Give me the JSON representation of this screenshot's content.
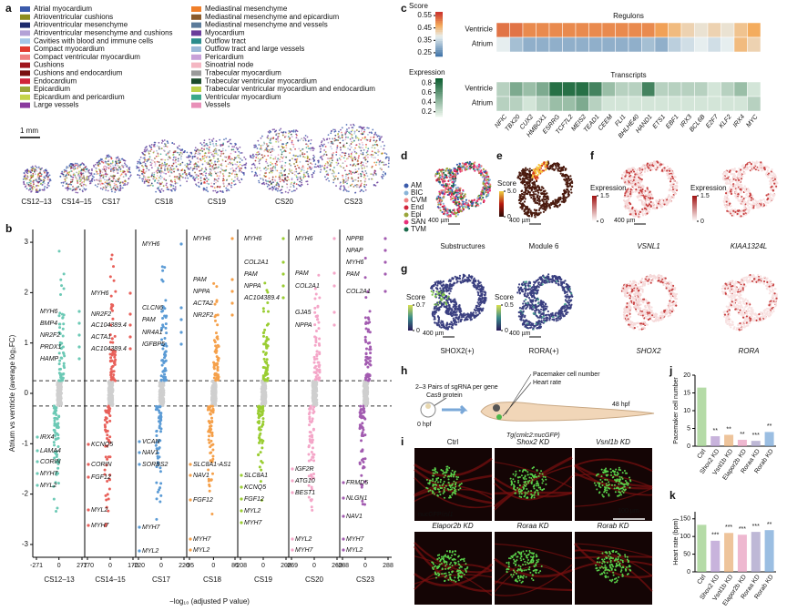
{
  "panel_labels": [
    "a",
    "b",
    "c",
    "d",
    "e",
    "f",
    "g",
    "h",
    "i",
    "j",
    "k"
  ],
  "a": {
    "legend": [
      {
        "name": "Atrial myocardium",
        "color": "#3b5bab"
      },
      {
        "name": "Atrioventricular cushions",
        "color": "#8c8c1e"
      },
      {
        "name": "Atrioventricular mesenchyme",
        "color": "#1c2a6b"
      },
      {
        "name": "Atrioventricular mesenchyme and cushions",
        "color": "#b3a1d6"
      },
      {
        "name": "Cavities with blood and immune cells",
        "color": "#a6c8e8"
      },
      {
        "name": "Compact myocardium",
        "color": "#e03c31"
      },
      {
        "name": "Compact ventricular myocardium",
        "color": "#f08080"
      },
      {
        "name": "Cushions",
        "color": "#a0151c"
      },
      {
        "name": "Cushions and endocardium",
        "color": "#7a1010"
      },
      {
        "name": "Endocardium",
        "color": "#d0243a"
      },
      {
        "name": "Epicardium",
        "color": "#9aa53a"
      },
      {
        "name": "Epicardium and pericardium",
        "color": "#c5d44a"
      },
      {
        "name": "Large vessels",
        "color": "#8a3a9e"
      },
      {
        "name": "Mediastinal mesenchyme",
        "color": "#f07f2a"
      },
      {
        "name": "Mediastinal mesenchyme and epicardium",
        "color": "#8a5a2b"
      },
      {
        "name": "Mediastinal mesenchyme and vessels",
        "color": "#5a7a9a"
      },
      {
        "name": "Myocardium",
        "color": "#6a3d9a"
      },
      {
        "name": "Outflow tract",
        "color": "#2a8c8c"
      },
      {
        "name": "Outflow tract and large vessels",
        "color": "#9ab8d8"
      },
      {
        "name": "Pericardium",
        "color": "#c8a0d8"
      },
      {
        "name": "Sinoatrial node",
        "color": "#f4b6c2"
      },
      {
        "name": "Trabecular myocardium",
        "color": "#9a9a9a"
      },
      {
        "name": "Trabecular ventricular myocardium",
        "color": "#1a4a2a"
      },
      {
        "name": "Trabecular ventricular myocardium and endocardium",
        "color": "#bcd24a"
      },
      {
        "name": "Ventricular myocardium",
        "color": "#3aa88a"
      },
      {
        "name": "Vessels",
        "color": "#e890b8"
      }
    ],
    "scale_bar": "1 mm",
    "stages": [
      "CS12–13",
      "CS14–15",
      "CS17",
      "CS18",
      "CS19",
      "CS20",
      "CS23"
    ]
  },
  "b": {
    "y_label": "Atrium vs ventricle (average log₂FC)",
    "x_label": "−log₁₀ (adjusted P value)",
    "ylim": [
      -3.2,
      3.2
    ],
    "yticks": [
      -3,
      -2,
      -1,
      0,
      1,
      2,
      3
    ],
    "threshold_lines": [
      0.25,
      -0.25
    ],
    "panels": [
      {
        "stage": "CS12–13",
        "color": "#6cc9b5",
        "xlim": [
          -271,
          277
        ],
        "xticks": [
          -271,
          0,
          277
        ],
        "up": [
          "MYH6",
          "BMP4",
          "NR2F2",
          "PRDX1",
          "HAMP"
        ],
        "down": [
          "IRX4",
          "LAMA4",
          "CORIN",
          "MYH7",
          "MYL2"
        ]
      },
      {
        "stage": "CS14–15",
        "color": "#e8605a",
        "xlim": [
          -170,
          170
        ],
        "xticks": [
          -170,
          0,
          170
        ],
        "up": [
          "MYH6",
          "NR2F2",
          "AC104389.4",
          "ACTA1",
          "AC104389.4"
        ],
        "down": [
          "KCNQ5",
          "CORIN",
          "FGF12",
          "MYL2",
          "MYH7"
        ]
      },
      {
        "stage": "CS17",
        "color": "#5b9bd5",
        "xlim": [
          -220,
          220
        ],
        "xticks": [
          -220,
          0,
          220
        ],
        "up": [
          "MYH6",
          "CLCN6",
          "PAM",
          "NR4A1",
          "IGFBP5"
        ],
        "down": [
          "VCAN",
          "NAV1",
          "SORBS2",
          "MYH7",
          "MYL2"
        ]
      },
      {
        "stage": "CS18",
        "color": "#f5a04a",
        "xlim": [
          -95,
          85
        ],
        "xticks": [
          -95,
          0,
          85
        ],
        "up": [
          "MYH6",
          "PAM",
          "NPPA",
          "ACTA2",
          "NR2F2"
        ],
        "down": [
          "SLC8A1-AS1",
          "NAV1",
          "FGF12",
          "MYH7",
          "MYL2"
        ]
      },
      {
        "stage": "CS19",
        "color": "#9acd32",
        "xlim": [
          -208,
          208
        ],
        "xticks": [
          -208,
          0,
          208
        ],
        "up": [
          "MYH6",
          "COL2A1",
          "PAM",
          "NPPA",
          "AC104389.4"
        ],
        "down": [
          "SLC8A1",
          "KCNQ5",
          "FGF12",
          "MYL2",
          "MYH7"
        ]
      },
      {
        "stage": "CS20",
        "color": "#f4a6c8",
        "xlim": [
          -269,
          269
        ],
        "xticks": [
          -269,
          0,
          269
        ],
        "up": [
          "MYH6",
          "PAM",
          "COL2A1",
          "GJA5",
          "NPPA"
        ],
        "down": [
          "IGF2R",
          "ATG10",
          "BEST1",
          "MYL2",
          "MYH7"
        ]
      },
      {
        "stage": "CS23",
        "color": "#a25bb0",
        "xlim": [
          -288,
          288
        ],
        "xticks": [
          -288,
          0,
          288
        ],
        "up": [
          "NPPB",
          "NPAP",
          "MYH6",
          "PAM",
          "COL2A1"
        ],
        "down": [
          "FRMD5",
          "NLGN1",
          "NAV1",
          "MYH7",
          "MYL2"
        ]
      }
    ]
  },
  "c": {
    "genes": [
      "NFIC",
      "TBX20",
      "CUX2",
      "HMBOX1",
      "ESRRG",
      "TCF7L2",
      "MEIS2",
      "TEAD1",
      "CEEM",
      "FLI1",
      "BHLHE40",
      "HAND1",
      "ETS1",
      "EBF1",
      "IRX3",
      "BCL6B",
      "E2F7",
      "KLF2",
      "IRX4",
      "MYC"
    ],
    "heatmaps": [
      {
        "title": "Regulons",
        "colorbar_title": "Score",
        "clim": [
          0.22,
          0.58
        ],
        "ticks": [
          0.55,
          0.45,
          0.35,
          0.25
        ],
        "rows": [
          "Ventricle",
          "Atrium"
        ],
        "values": [
          [
            0.52,
            0.52,
            0.5,
            0.5,
            0.5,
            0.5,
            0.5,
            0.5,
            0.5,
            0.5,
            0.5,
            0.5,
            0.48,
            0.45,
            0.42,
            0.4,
            0.42,
            0.4,
            0.44,
            0.47
          ],
          [
            0.38,
            0.32,
            0.3,
            0.3,
            0.3,
            0.3,
            0.3,
            0.3,
            0.3,
            0.3,
            0.3,
            0.32,
            0.3,
            0.34,
            0.36,
            0.38,
            0.36,
            0.38,
            0.45,
            0.42
          ]
        ]
      },
      {
        "title": "Transcripts",
        "colorbar_title": "Expression",
        "clim": [
          0.1,
          0.9
        ],
        "ticks": [
          0.8,
          0.6,
          0.4,
          0.2
        ],
        "rows": [
          "Ventricle",
          "Atrium"
        ],
        "values": [
          [
            0.3,
            0.5,
            0.4,
            0.5,
            0.8,
            0.8,
            0.8,
            0.7,
            0.4,
            0.3,
            0.3,
            0.7,
            0.3,
            0.3,
            0.3,
            0.3,
            0.2,
            0.3,
            0.4,
            0.2
          ],
          [
            0.3,
            0.3,
            0.2,
            0.3,
            0.4,
            0.4,
            0.5,
            0.3,
            0.2,
            0.2,
            0.2,
            0.2,
            0.2,
            0.2,
            0.2,
            0.2,
            0.2,
            0.2,
            0.2,
            0.3
          ]
        ]
      }
    ]
  },
  "d": {
    "legend": [
      {
        "name": "AM",
        "color": "#3b5bab"
      },
      {
        "name": "BIC",
        "color": "#8ab4d8"
      },
      {
        "name": "CVM",
        "color": "#f08080"
      },
      {
        "name": "End",
        "color": "#d0243a"
      },
      {
        "name": "Epi",
        "color": "#9aa53a"
      },
      {
        "name": "SAN",
        "color": "#e8307a"
      },
      {
        "name": "TVM",
        "color": "#1a6a4a"
      }
    ],
    "caption": "Substructures",
    "scale_bar": "400 µm"
  },
  "e": {
    "colorbar_title": "Score",
    "ticks": [
      {
        "value": 5,
        "label": "5.0"
      },
      0
    ],
    "caption": "Module 6",
    "scale_bar": "400 µm"
  },
  "f": [
    {
      "colorbar_title": "Expression",
      "ticks": [
        1.5,
        0
      ],
      "caption": "VSNL1",
      "scale_bar": "400 µm"
    },
    {
      "colorbar_title": "Expression",
      "ticks": [
        1.5,
        0
      ],
      "caption": "KIAA1324L"
    }
  ],
  "g": [
    {
      "colorbar_title": "Score",
      "ticks": [
        0.7,
        0
      ],
      "caption": "SHOX2(+)",
      "scale_bar": "400 µm"
    },
    {
      "colorbar_title": "Score",
      "ticks": [
        0.5,
        0
      ],
      "caption": "RORA(+)",
      "scale_bar": "400 µm"
    },
    {
      "caption": "SHOX2"
    },
    {
      "caption": "RORA"
    }
  ],
  "h": {
    "injection": "2–3 Pairs of sgRNA per gene",
    "protein": "Cas9 protein",
    "start": "0 hpf",
    "readout1": "Pacemaker cell number",
    "readout2": "Heart rate",
    "end": "48 hpf",
    "line": "Tg(cmlc2:nucGFP)"
  },
  "i": {
    "images": [
      "Ctrl",
      "Shox2 KD",
      "Vsnl1b KD",
      "Elapor2b KD",
      "Roraa KD",
      "Rorab KD"
    ],
    "stain_green": "nucGFP/",
    "stain_red": "isl1",
    "scale_bar": "100 µm"
  },
  "j": {
    "type": "bar",
    "y_label": "Pacemaker cell number",
    "categories": [
      "Ctrl",
      "Shox2 KD",
      "Vsnl1b KD",
      "Elapor2b KD",
      "Roraa KD",
      "Rorab KD"
    ],
    "values": [
      16.5,
      2.8,
      3.2,
      1.8,
      1.5,
      4
    ],
    "colors": [
      "#9ccf8a",
      "#b59ad0",
      "#e8b07a",
      "#e8a0c0",
      "#a8a0c8",
      "#7aa8d8"
    ],
    "ylim": [
      0,
      20
    ],
    "yticks": [
      0,
      5,
      10,
      15,
      20
    ],
    "significance": [
      null,
      "**",
      "**",
      "**",
      "***",
      "**"
    ]
  },
  "k": {
    "type": "bar",
    "y_label": "Heart rate (bpm)",
    "categories": [
      "Ctrl",
      "Shox2 KD",
      "Vsnl1b KD",
      "Elapor2b KD",
      "Roraa KD",
      "Rorab KD"
    ],
    "values": [
      133,
      88,
      110,
      105,
      113,
      118
    ],
    "colors": [
      "#9ccf8a",
      "#b59ad0",
      "#e8b07a",
      "#e8a0c0",
      "#a8a0c8",
      "#7aa8d8"
    ],
    "ylim": [
      0,
      170
    ],
    "yticks": [
      0,
      50,
      100,
      150
    ],
    "significance": [
      null,
      "***",
      "***",
      "***",
      "***",
      "**"
    ]
  }
}
